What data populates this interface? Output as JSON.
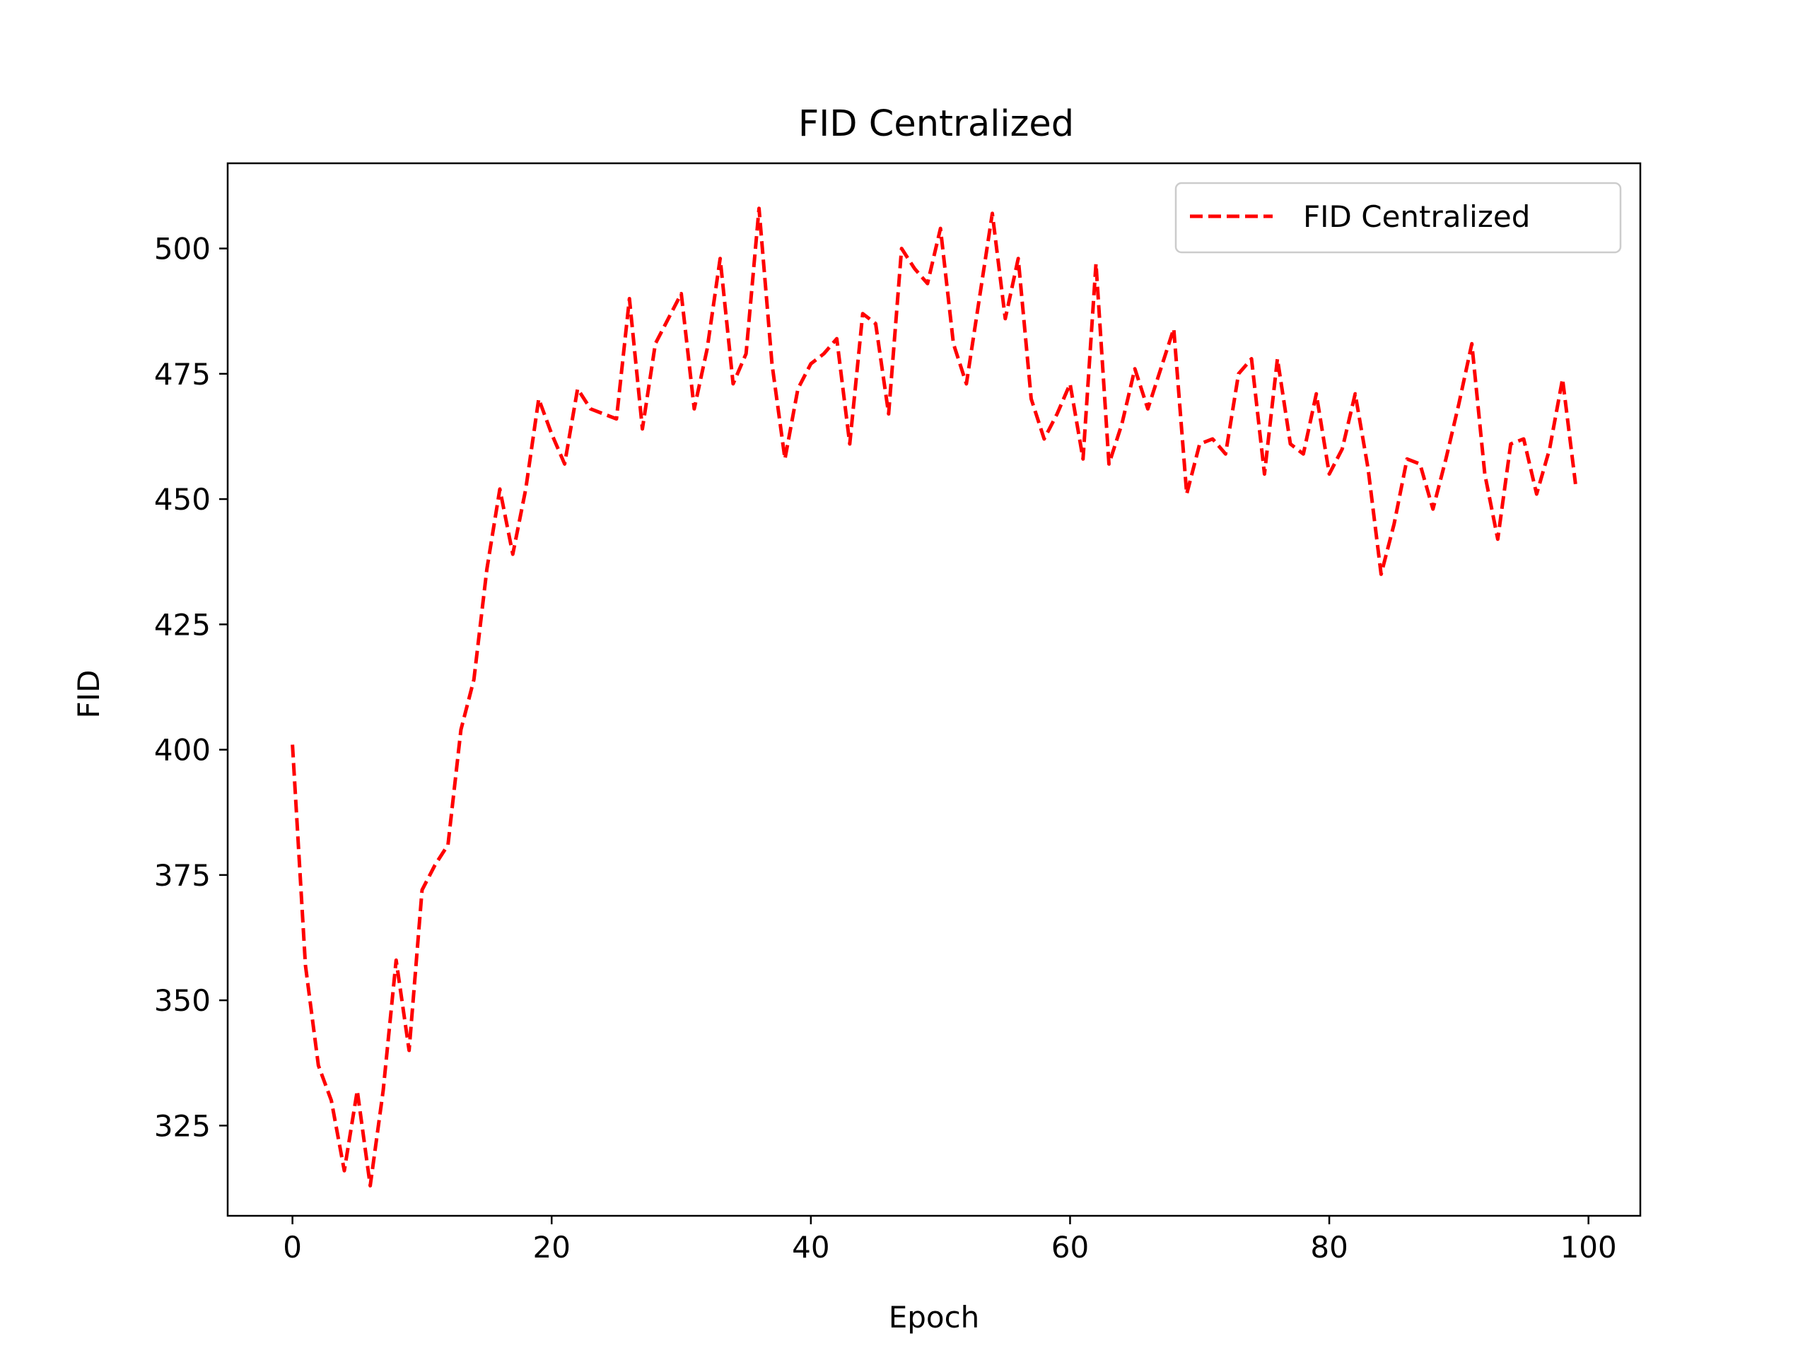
{
  "chart_data": {
    "type": "line",
    "title": "FID Centralized",
    "xlabel": "Epoch",
    "ylabel": "FID",
    "xlim": [
      -5,
      104
    ],
    "ylim": [
      307,
      517
    ],
    "xticks": [
      0,
      20,
      40,
      60,
      80,
      100
    ],
    "yticks": [
      325,
      350,
      375,
      400,
      425,
      450,
      475,
      500
    ],
    "xtick_labels": [
      "0",
      "20",
      "40",
      "60",
      "80",
      "100"
    ],
    "ytick_labels": [
      "325",
      "350",
      "375",
      "400",
      "425",
      "450",
      "475",
      "500"
    ],
    "grid": false,
    "legend_position": "top-right",
    "x": [
      0,
      1,
      2,
      3,
      4,
      5,
      6,
      7,
      8,
      9,
      10,
      11,
      12,
      13,
      14,
      15,
      16,
      17,
      18,
      19,
      20,
      21,
      22,
      23,
      24,
      25,
      26,
      27,
      28,
      29,
      30,
      31,
      32,
      33,
      34,
      35,
      36,
      37,
      38,
      39,
      40,
      41,
      42,
      43,
      44,
      45,
      46,
      47,
      48,
      49,
      50,
      51,
      52,
      53,
      54,
      55,
      56,
      57,
      58,
      59,
      60,
      61,
      62,
      63,
      64,
      65,
      66,
      67,
      68,
      69,
      70,
      71,
      72,
      73,
      74,
      75,
      76,
      77,
      78,
      79,
      80,
      81,
      82,
      83,
      84,
      85,
      86,
      87,
      88,
      89,
      90,
      91,
      92,
      93,
      94,
      95,
      96,
      97,
      98,
      99
    ],
    "series": [
      {
        "name": "FID Centralized",
        "color": "#ff0000",
        "line_style": "dashed",
        "values": [
          401,
          357,
          337,
          330,
          316,
          332,
          313,
          332,
          358,
          340,
          372,
          377,
          381,
          404,
          414,
          436,
          452,
          439,
          452,
          470,
          463,
          457,
          472,
          468,
          467,
          466,
          490,
          464,
          481,
          486,
          491,
          468,
          480,
          498,
          473,
          479,
          508,
          477,
          458,
          472,
          477,
          479,
          482,
          461,
          487,
          485,
          467,
          500,
          496,
          493,
          504,
          481,
          473,
          490,
          507,
          486,
          498,
          470,
          462,
          467,
          473,
          458,
          497,
          457,
          465,
          476,
          468,
          476,
          484,
          451,
          461,
          462,
          459,
          475,
          478,
          455,
          478,
          461,
          459,
          471,
          455,
          460,
          471,
          456,
          435,
          445,
          458,
          457,
          448,
          458,
          469,
          481,
          455,
          442,
          461,
          462,
          451,
          460,
          474,
          453
        ]
      }
    ],
    "legend": {
      "entries": [
        "FID Centralized"
      ]
    }
  }
}
